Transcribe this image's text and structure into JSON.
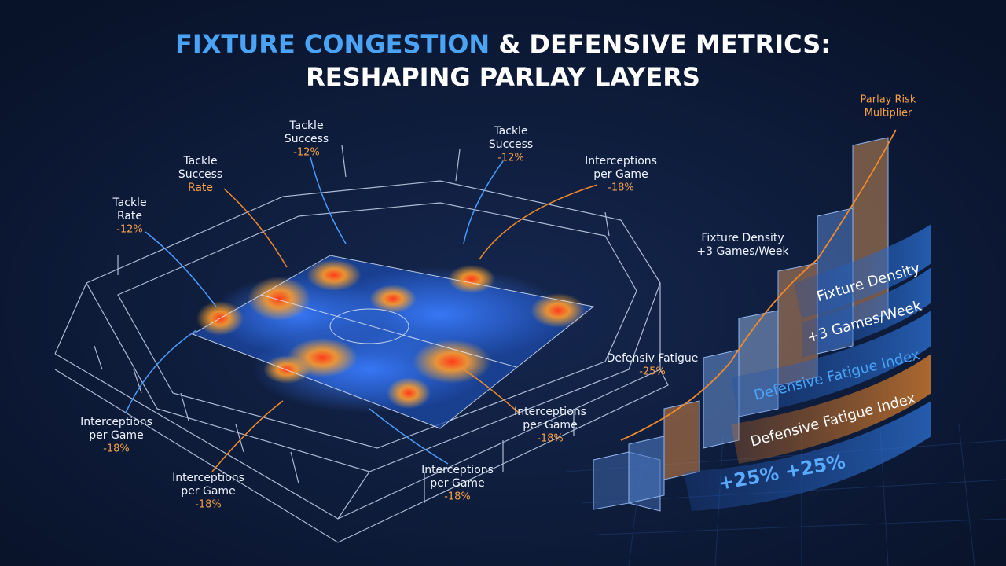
{
  "header": {
    "title_highlight": "FIXTURE CONGESTION",
    "title_rest": "& DEFENSIVE METRICS:",
    "title_line2": "RESHAPING PARLAY LAYERS"
  },
  "callouts": [
    {
      "lines": [
        "Tackle",
        "Rate"
      ],
      "value": "-12%"
    },
    {
      "lines": [
        "Tackle",
        "Success",
        "Rate"
      ]
    },
    {
      "lines": [
        "Tackle",
        "Success"
      ],
      "value": "-12%"
    },
    {
      "lines": [
        "Tackle",
        "Success"
      ],
      "value": "-12%"
    },
    {
      "lines": [
        "Interceptions",
        "per Game"
      ],
      "value": "-18%"
    },
    {
      "lines": [
        "Fixture Density",
        "+3 Games/Week"
      ]
    },
    {
      "lines": [
        "Defensiv Fatigue"
      ],
      "value": "-25%"
    },
    {
      "lines": [
        "Interceptions",
        "per Game"
      ],
      "value": "-18%"
    },
    {
      "lines": [
        "Interceptions",
        "per Game"
      ],
      "value": "-18%"
    },
    {
      "lines": [
        "Interceptions",
        "per Game"
      ],
      "value": "-18%"
    },
    {
      "lines": [
        "Interceptions",
        "per Game"
      ],
      "value": "-18%"
    }
  ],
  "risk_chart": {
    "title": [
      "Parlay Risk",
      "Multiplier"
    ],
    "ribbons": [
      "Fixture Density",
      "+3 Games/Week",
      "Defensive Fatigue Index",
      "Defensive Fatigue Index"
    ],
    "total": "+25% +25%"
  }
}
